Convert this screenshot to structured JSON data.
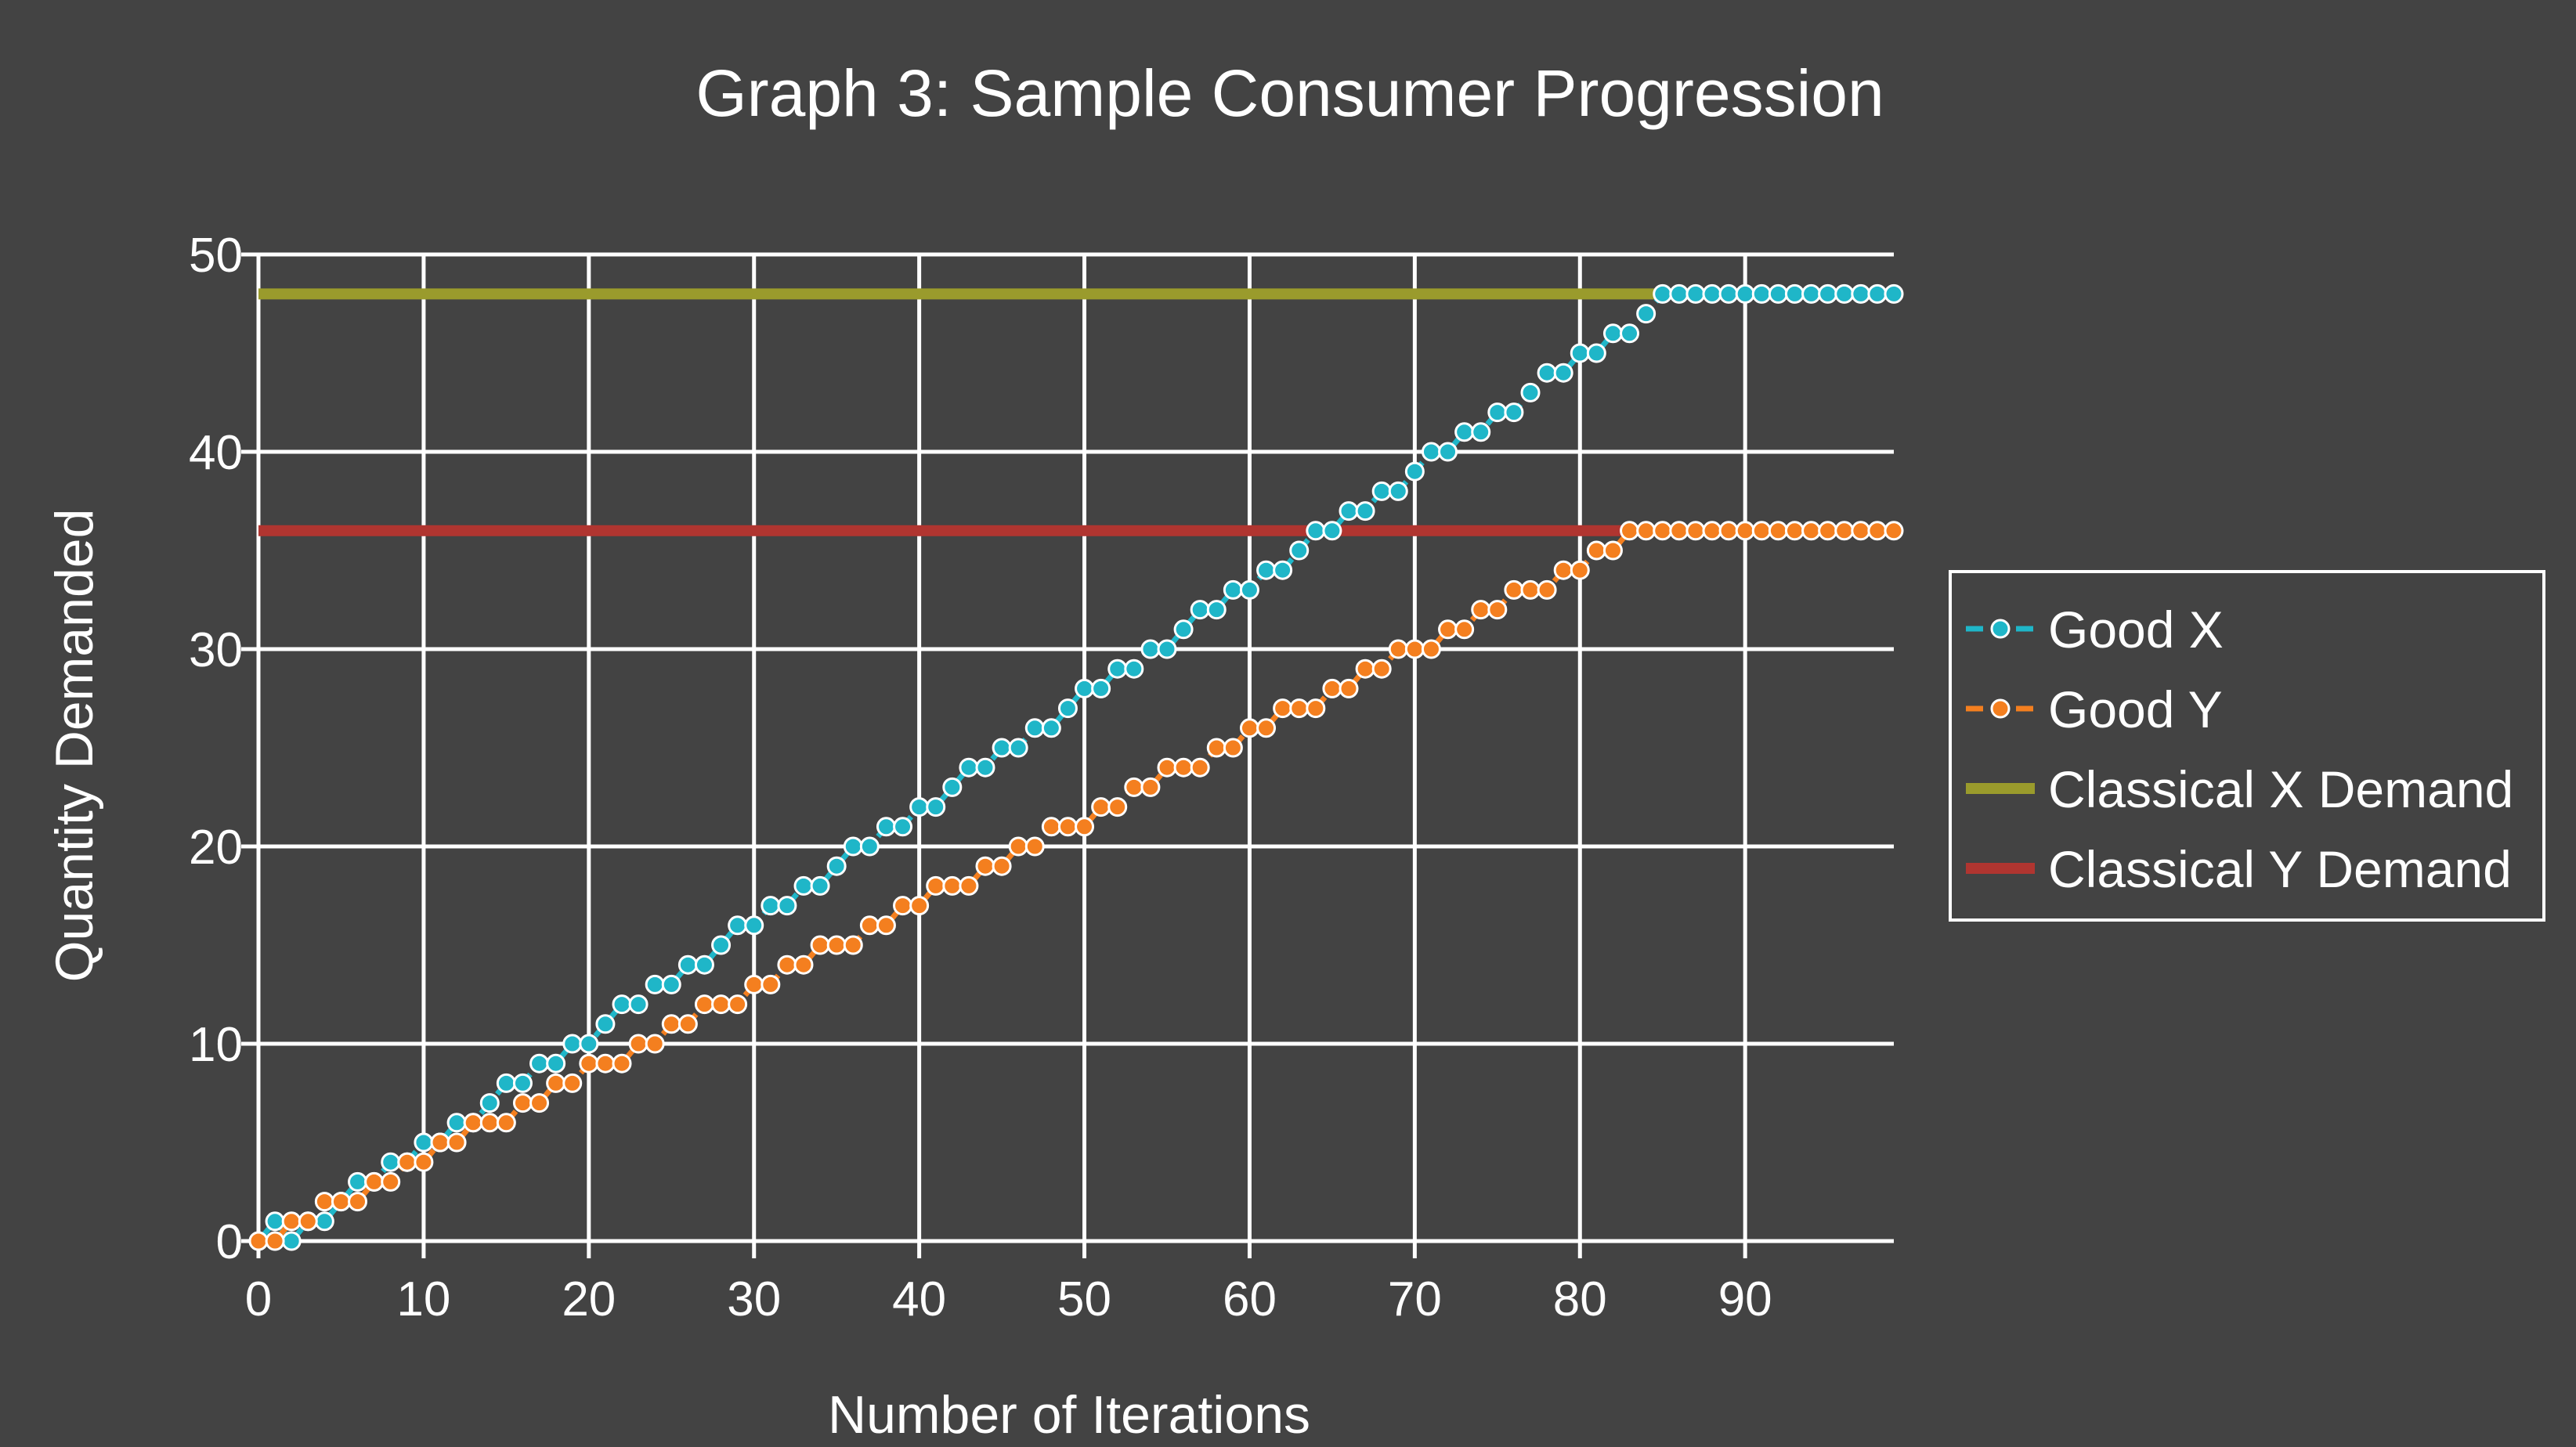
{
  "chart_data": {
    "type": "line",
    "title": "Graph 3: Sample Consumer Progression",
    "xlabel": "Number of Iterations",
    "ylabel": "Quantity Demanded",
    "xlim": [
      0,
      99
    ],
    "ylim": [
      0,
      50
    ],
    "xticks": [
      0,
      10,
      20,
      30,
      40,
      50,
      60,
      70,
      80,
      90
    ],
    "yticks": [
      0,
      10,
      20,
      30,
      40,
      50
    ],
    "grid": true,
    "legend_position": "right",
    "series": [
      {
        "name": "Good X",
        "color": "#1fb6c8",
        "marker": "circle",
        "x": [
          0,
          1,
          2,
          3,
          4,
          5,
          6,
          7,
          8,
          9,
          10,
          11,
          12,
          13,
          14,
          15,
          16,
          17,
          18,
          19,
          20,
          21,
          22,
          23,
          24,
          25,
          26,
          27,
          28,
          29,
          30,
          31,
          32,
          33,
          34,
          35,
          36,
          37,
          38,
          39,
          40,
          41,
          42,
          43,
          44,
          45,
          46,
          47,
          48,
          49,
          50,
          51,
          52,
          53,
          54,
          55,
          56,
          57,
          58,
          59,
          60,
          61,
          62,
          63,
          64,
          65,
          66,
          67,
          68,
          69,
          70,
          71,
          72,
          73,
          74,
          75,
          76,
          77,
          78,
          79,
          80,
          81,
          82,
          83,
          84,
          85,
          86,
          87,
          88,
          89,
          90,
          91,
          92,
          93,
          94,
          95,
          96,
          97,
          98,
          99
        ],
        "values": [
          0,
          1,
          0,
          1,
          1,
          2,
          3,
          3,
          4,
          4,
          5,
          5,
          6,
          6,
          7,
          8,
          8,
          9,
          9,
          10,
          10,
          11,
          12,
          12,
          13,
          13,
          14,
          14,
          15,
          16,
          16,
          17,
          17,
          18,
          18,
          19,
          20,
          20,
          21,
          21,
          22,
          22,
          23,
          24,
          24,
          25,
          25,
          26,
          26,
          27,
          28,
          28,
          29,
          29,
          30,
          30,
          31,
          32,
          32,
          33,
          33,
          34,
          34,
          35,
          36,
          36,
          37,
          37,
          38,
          38,
          39,
          40,
          40,
          41,
          41,
          42,
          42,
          43,
          44,
          44,
          45,
          45,
          46,
          46,
          47,
          48,
          48,
          48,
          48,
          48,
          48,
          48,
          48,
          48,
          48,
          48,
          48,
          48,
          48,
          48
        ]
      },
      {
        "name": "Good Y",
        "color": "#f47f1f",
        "marker": "circle",
        "x": [
          0,
          1,
          2,
          3,
          4,
          5,
          6,
          7,
          8,
          9,
          10,
          11,
          12,
          13,
          14,
          15,
          16,
          17,
          18,
          19,
          20,
          21,
          22,
          23,
          24,
          25,
          26,
          27,
          28,
          29,
          30,
          31,
          32,
          33,
          34,
          35,
          36,
          37,
          38,
          39,
          40,
          41,
          42,
          43,
          44,
          45,
          46,
          47,
          48,
          49,
          50,
          51,
          52,
          53,
          54,
          55,
          56,
          57,
          58,
          59,
          60,
          61,
          62,
          63,
          64,
          65,
          66,
          67,
          68,
          69,
          70,
          71,
          72,
          73,
          74,
          75,
          76,
          77,
          78,
          79,
          80,
          81,
          82,
          83,
          84,
          85,
          86,
          87,
          88,
          89,
          90,
          91,
          92,
          93,
          94,
          95,
          96,
          97,
          98,
          99
        ],
        "values": [
          0,
          0,
          1,
          1,
          2,
          2,
          2,
          3,
          3,
          4,
          4,
          5,
          5,
          6,
          6,
          6,
          7,
          7,
          8,
          8,
          9,
          9,
          9,
          10,
          10,
          11,
          11,
          12,
          12,
          12,
          13,
          13,
          14,
          14,
          15,
          15,
          15,
          16,
          16,
          17,
          17,
          18,
          18,
          18,
          19,
          19,
          20,
          20,
          21,
          21,
          21,
          22,
          22,
          23,
          23,
          24,
          24,
          24,
          25,
          25,
          26,
          26,
          27,
          27,
          27,
          28,
          28,
          29,
          29,
          30,
          30,
          30,
          31,
          31,
          32,
          32,
          33,
          33,
          33,
          34,
          34,
          35,
          35,
          36,
          36,
          36,
          36,
          36,
          36,
          36,
          36,
          36,
          36,
          36,
          36,
          36,
          36,
          36,
          36,
          36
        ]
      },
      {
        "name": "Classical X Demand",
        "color": "#9a9b2c",
        "x": [
          0,
          99
        ],
        "values": [
          48,
          48
        ]
      },
      {
        "name": "Classical Y Demand",
        "color": "#b03530",
        "x": [
          0,
          99
        ],
        "values": [
          36,
          36
        ]
      }
    ]
  }
}
